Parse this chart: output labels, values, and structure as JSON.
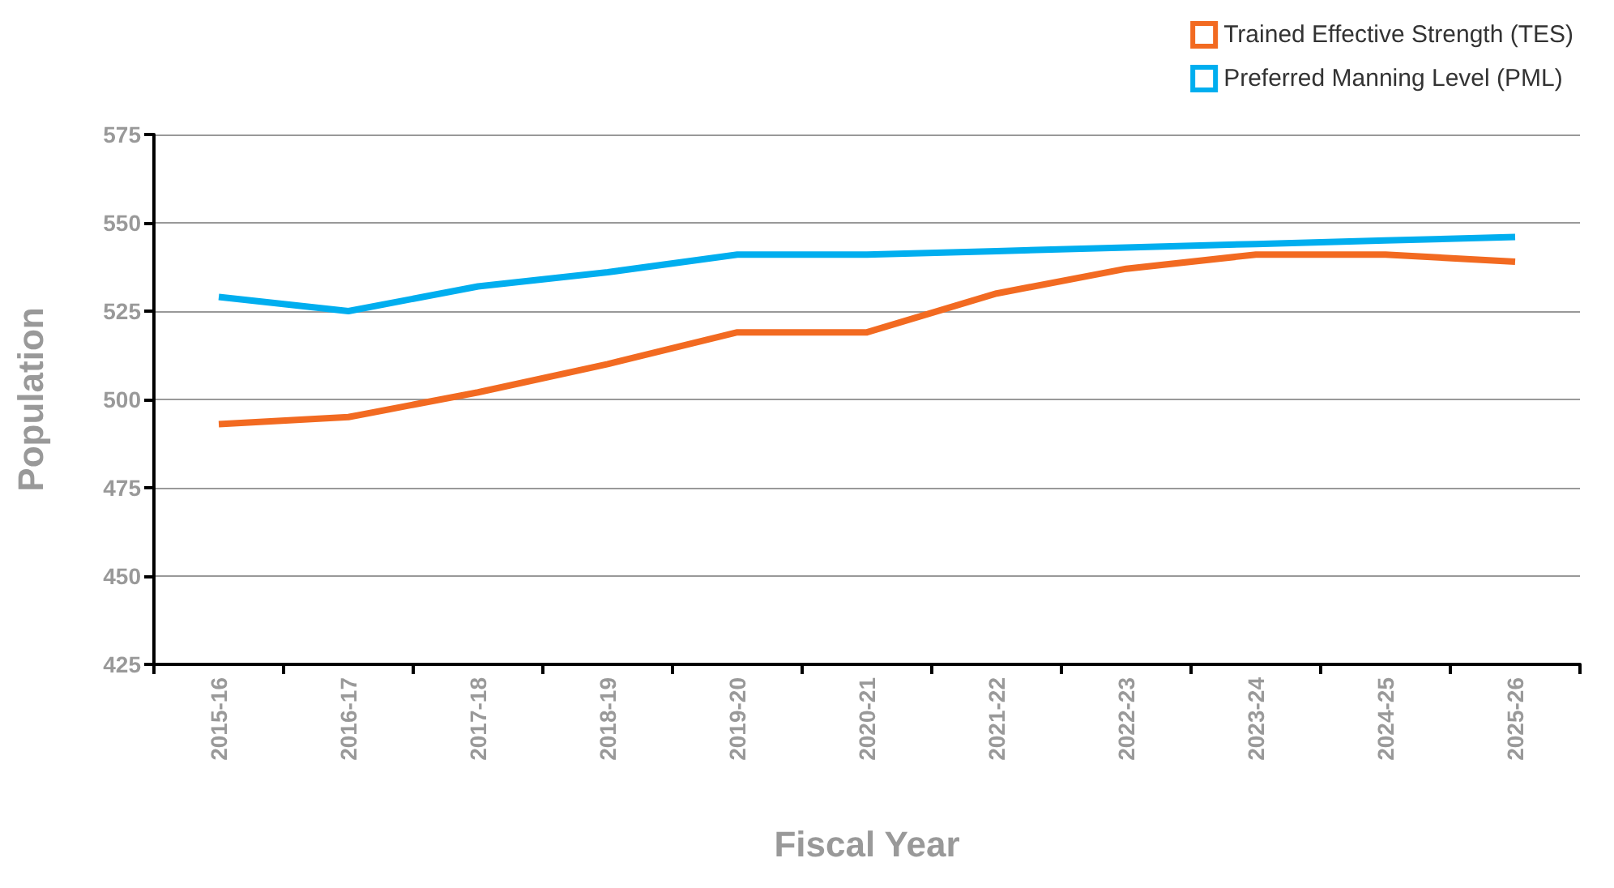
{
  "chart_data": {
    "type": "line",
    "xlabel": "Fiscal Year",
    "ylabel": "Population",
    "categories": [
      "2015-16",
      "2016-17",
      "2017-18",
      "2018-19",
      "2019-20",
      "2020-21",
      "2021-22",
      "2022-23",
      "2023-24",
      "2024-25",
      "2025-26"
    ],
    "series": [
      {
        "name": "Trained Effective Strength (TES)",
        "color": "#f26a21",
        "values": [
          493,
          495,
          502,
          510,
          519,
          519,
          530,
          537,
          541,
          541,
          539
        ]
      },
      {
        "name": "Preferred Manning Level (PML)",
        "color": "#00aeef",
        "values": [
          529,
          525,
          532,
          536,
          541,
          541,
          542,
          543,
          544,
          545,
          546
        ]
      }
    ],
    "ylim": [
      425,
      575
    ],
    "yticks": [
      425,
      450,
      475,
      500,
      525,
      550,
      575
    ],
    "grid": "y",
    "legend": "top right",
    "marker": "none",
    "line_style": "solid"
  }
}
